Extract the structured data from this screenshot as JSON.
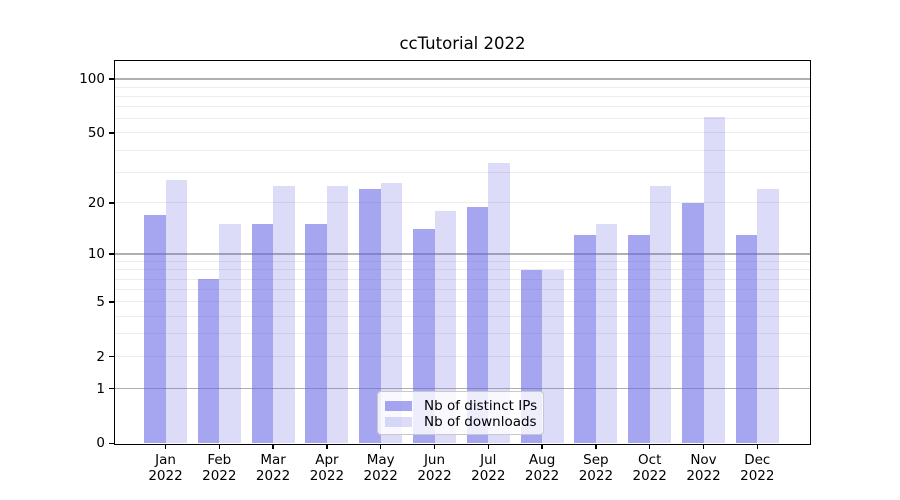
{
  "chart_data": {
    "type": "bar",
    "title": "ccTutorial 2022",
    "categories": [
      "Jan 2022",
      "Feb 2022",
      "Mar 2022",
      "Apr 2022",
      "May 2022",
      "Jun 2022",
      "Jul 2022",
      "Aug 2022",
      "Sep 2022",
      "Oct 2022",
      "Nov 2022",
      "Dec 2022"
    ],
    "series": [
      {
        "name": "Nb of distinct IPs",
        "values": [
          17,
          7,
          15,
          15,
          24,
          14,
          19,
          8,
          13,
          13,
          20,
          13
        ],
        "color": "rgba(99,99,228,0.57)"
      },
      {
        "name": "Nb of downloads",
        "values": [
          27,
          15,
          25,
          25,
          26,
          18,
          34,
          8,
          15,
          25,
          61,
          24
        ],
        "color": "rgba(99,99,228,0.225)"
      }
    ],
    "y_axis": {
      "scale": "log10(1+v)",
      "tick_values": [
        0,
        1,
        2,
        5,
        10,
        20,
        50,
        100
      ],
      "tick_labels": [
        "0",
        "1",
        "2",
        "5",
        "10",
        "20",
        "50",
        "100"
      ],
      "major_gridlines": [
        1,
        10,
        100
      ],
      "minor_gridlines": [
        2,
        3,
        4,
        5,
        6,
        7,
        8,
        9,
        20,
        30,
        40,
        50,
        60,
        70,
        80,
        90
      ],
      "range": [
        0,
        126
      ]
    },
    "x_axis": {
      "tick_label_lines": 2
    },
    "legend": {
      "position": "lower center"
    },
    "grid": true,
    "colors": {
      "major_grid": "#b0b0b0",
      "minor_grid": "#ececec",
      "spine": "#000000",
      "text": "#000000",
      "legend_border": "#c9c9c9",
      "legend_background": "rgba(255,255,255,0.8)"
    }
  }
}
